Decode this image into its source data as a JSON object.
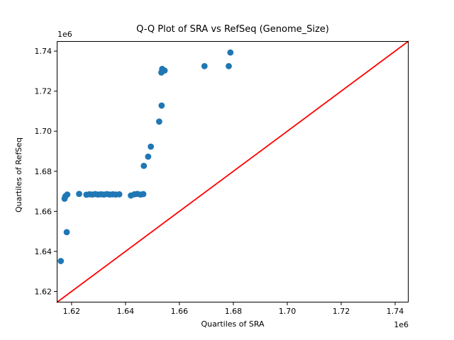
{
  "figure": {
    "background": "#ffffff",
    "text_color": "#000000",
    "spine_color": "#000000"
  },
  "chart_data": {
    "type": "scatter",
    "title": "Q-Q Plot of SRA vs RefSeq (Genome_Size)",
    "xlabel": "Quartiles of SRA",
    "ylabel": "Quartiles of RefSeq",
    "axis_offset_label": "1e6",
    "grid": false,
    "legend_position": "none",
    "xlim": [
      1614500,
      1745000
    ],
    "ylim": [
      1614500,
      1745000
    ],
    "xticks": {
      "values": [
        1620000,
        1640000,
        1660000,
        1680000,
        1700000,
        1720000,
        1740000
      ],
      "labels": [
        "1.62",
        "1.64",
        "1.66",
        "1.68",
        "1.70",
        "1.72",
        "1.74"
      ]
    },
    "yticks": {
      "values": [
        1620000,
        1640000,
        1660000,
        1680000,
        1700000,
        1720000,
        1740000
      ],
      "labels": [
        "1.62",
        "1.64",
        "1.66",
        "1.68",
        "1.70",
        "1.72",
        "1.74"
      ]
    },
    "series": [
      {
        "name": "identity-line",
        "type": "line",
        "color": "#ff0000",
        "points": [
          [
            1614500,
            1614500
          ],
          [
            1745000,
            1745000
          ]
        ]
      },
      {
        "name": "qq-points",
        "type": "scatter",
        "color": "#1f77b4",
        "points": [
          [
            1616000,
            1635200
          ],
          [
            1618200,
            1649600
          ],
          [
            1617400,
            1666300
          ],
          [
            1617700,
            1667500
          ],
          [
            1618400,
            1668400
          ],
          [
            1622800,
            1668700
          ],
          [
            1625500,
            1668300
          ],
          [
            1626600,
            1668500
          ],
          [
            1627700,
            1668400
          ],
          [
            1628800,
            1668600
          ],
          [
            1629800,
            1668400
          ],
          [
            1630900,
            1668500
          ],
          [
            1632000,
            1668400
          ],
          [
            1633100,
            1668600
          ],
          [
            1634200,
            1668400
          ],
          [
            1635300,
            1668500
          ],
          [
            1636400,
            1668400
          ],
          [
            1637700,
            1668500
          ],
          [
            1642000,
            1667900
          ],
          [
            1643300,
            1668500
          ],
          [
            1644400,
            1668700
          ],
          [
            1645600,
            1668400
          ],
          [
            1646600,
            1668600
          ],
          [
            1646800,
            1682700
          ],
          [
            1648400,
            1687300
          ],
          [
            1649400,
            1692300
          ],
          [
            1652500,
            1704800
          ],
          [
            1653400,
            1712800
          ],
          [
            1653300,
            1729300
          ],
          [
            1653600,
            1731100
          ],
          [
            1654500,
            1730300
          ],
          [
            1669300,
            1732500
          ],
          [
            1678300,
            1732500
          ],
          [
            1678900,
            1739300
          ]
        ]
      }
    ]
  }
}
